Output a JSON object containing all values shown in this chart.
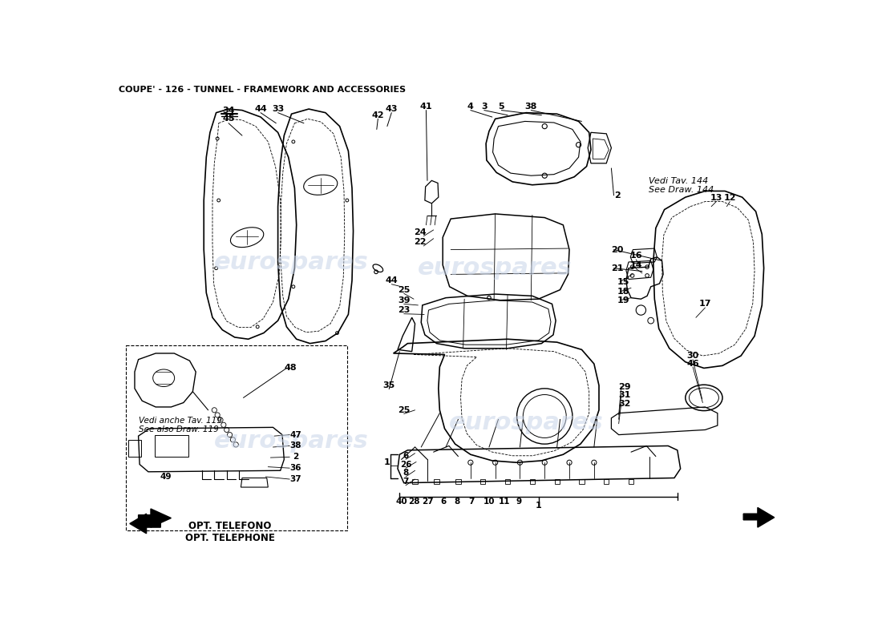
{
  "title": "COUPE' - 126 - TUNNEL - FRAMEWORK AND ACCESSORIES",
  "title_fontsize": 8,
  "bg": "#ffffff",
  "lc": "#000000",
  "watermark": "eurospares",
  "wm_color": "#c8d4e8",
  "opt_text": "OPT. TELEFONO\nOPT. TELEPHONE",
  "vedi_tav": "Vedi Tav. 144\nSee Draw. 144",
  "vedi_anche": "Vedi anche Tav. 119\nSee also Draw. 119"
}
